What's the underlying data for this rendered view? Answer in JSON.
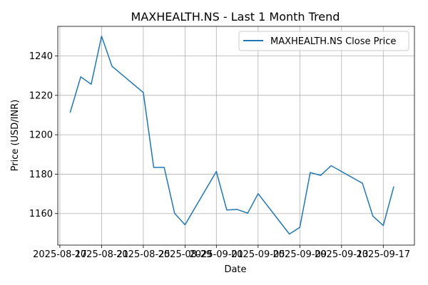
{
  "chart_data": {
    "type": "line",
    "title": "MAXHEALTH.NS - Last 1 Month Trend",
    "xlabel": "Date",
    "ylabel": "Price (USD/INR)",
    "grid": true,
    "legend_position": "top-right",
    "x_tick_labels": [
      "2025-08-17",
      "2025-08-21",
      "2025-08-25",
      "2025-08-29",
      "2025-09-01",
      "2025-09-05",
      "2025-09-09",
      "2025-09-13",
      "2025-09-17"
    ],
    "y_ticks": [
      1160,
      1180,
      1200,
      1220,
      1240
    ],
    "ylim": [
      1144,
      1255
    ],
    "series": [
      {
        "name": "MAXHEALTH.NS Close Price",
        "color": "#1f77b4",
        "points": [
          {
            "x": "2025-08-18",
            "y": 1211.5
          },
          {
            "x": "2025-08-19",
            "y": 1229.4
          },
          {
            "x": "2025-08-20",
            "y": 1225.6
          },
          {
            "x": "2025-08-21",
            "y": 1250.0
          },
          {
            "x": "2025-08-22",
            "y": 1234.7
          },
          {
            "x": "2025-08-25",
            "y": 1221.4
          },
          {
            "x": "2025-08-26",
            "y": 1183.4
          },
          {
            "x": "2025-08-27",
            "y": 1183.4
          },
          {
            "x": "2025-08-28",
            "y": 1160.1
          },
          {
            "x": "2025-08-29",
            "y": 1154.3
          },
          {
            "x": "2025-09-01",
            "y": 1181.4
          },
          {
            "x": "2025-09-02",
            "y": 1161.8
          },
          {
            "x": "2025-09-03",
            "y": 1162.1
          },
          {
            "x": "2025-09-04",
            "y": 1160.2
          },
          {
            "x": "2025-09-05",
            "y": 1170.1
          },
          {
            "x": "2025-09-08",
            "y": 1149.6
          },
          {
            "x": "2025-09-09",
            "y": 1153.0
          },
          {
            "x": "2025-09-10",
            "y": 1180.8
          },
          {
            "x": "2025-09-11",
            "y": 1179.4
          },
          {
            "x": "2025-09-12",
            "y": 1184.3
          },
          {
            "x": "2025-09-15",
            "y": 1175.4
          },
          {
            "x": "2025-09-16",
            "y": 1158.7
          },
          {
            "x": "2025-09-17",
            "y": 1153.9
          },
          {
            "x": "2025-09-18",
            "y": 1173.5
          }
        ]
      }
    ]
  }
}
